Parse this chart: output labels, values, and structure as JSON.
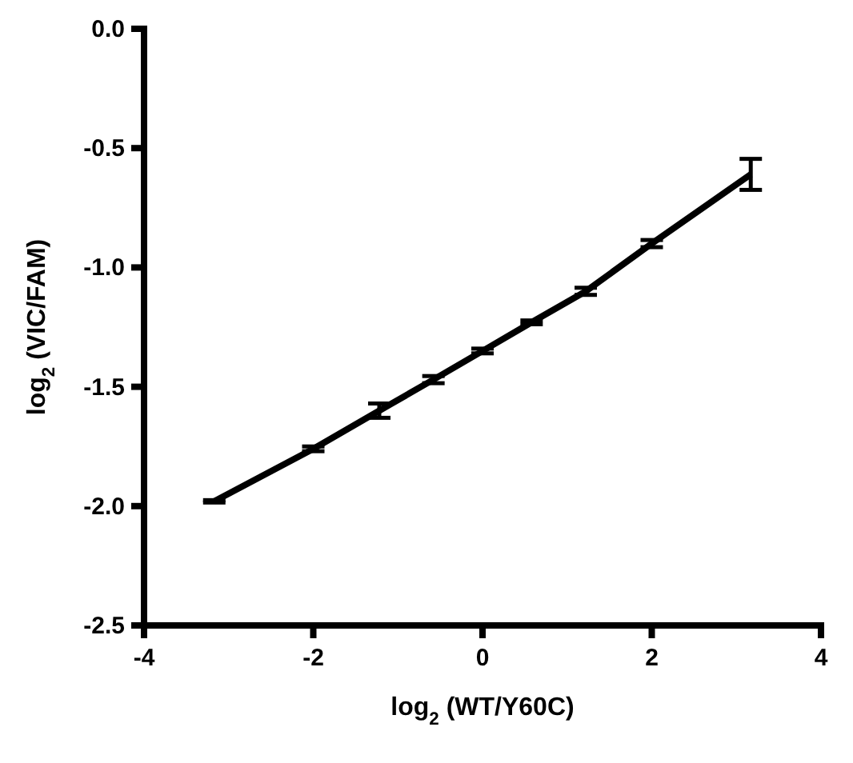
{
  "chart_data": {
    "type": "line",
    "xlabel": "log$_{2}$ (WT/Y60C)",
    "ylabel": "log$_{2}$ (VIC/FAM)",
    "x": [
      -3.17,
      -2,
      -1.22,
      -0.58,
      0,
      0.58,
      1.22,
      2,
      3.17
    ],
    "series": [
      {
        "color": "#000000",
        "values": [
          -1.98,
          -1.76,
          -1.6,
          -1.47,
          -1.35,
          -1.23,
          -1.1,
          -0.9,
          -0.61
        ],
        "errors": [
          0.005,
          0.01,
          0.03,
          0.015,
          0.01,
          0.008,
          0.015,
          0.015,
          0.065
        ]
      }
    ],
    "xlim": [
      -4,
      4
    ],
    "xticks": [
      -4,
      -2,
      0,
      2,
      4
    ],
    "ylim": [
      -2.5,
      0
    ],
    "yticks": [
      {
        "value": -2.5,
        "label": "-2.5"
      },
      {
        "value": -2,
        "label": "-2.0"
      },
      {
        "value": -1.5,
        "label": "-1.5"
      },
      {
        "value": -1,
        "label": "-1.0"
      },
      {
        "value": -0.5,
        "label": "-0.5"
      },
      {
        "value": 0,
        "label": "0.0"
      }
    ],
    "grid": false,
    "marker": "none",
    "line_style": "solid"
  }
}
